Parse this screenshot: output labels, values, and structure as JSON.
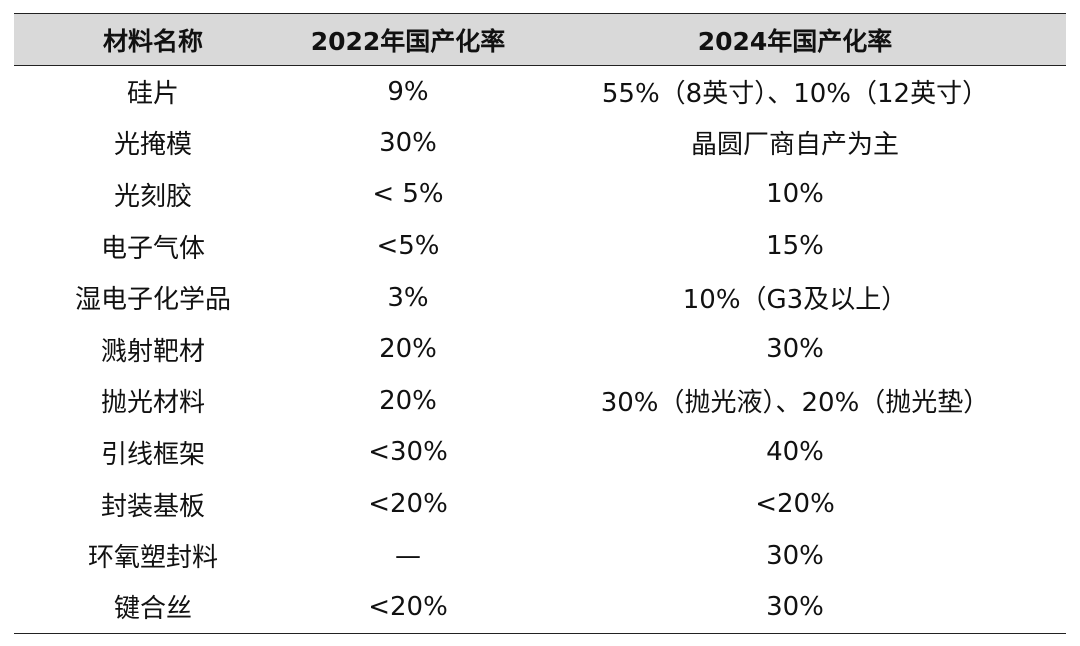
{
  "table": {
    "headers": [
      "材料名称",
      "2022年国产化率",
      "2024年国产化率"
    ],
    "rows": [
      [
        "硅片",
        "9%",
        "55%（8英寸）、10%（12英寸）"
      ],
      [
        "光掩模",
        "30%",
        "晶圆厂商自产为主"
      ],
      [
        "光刻胶",
        "< 5%",
        "10%"
      ],
      [
        "电子气体",
        "<5%",
        "15%"
      ],
      [
        "湿电子化学品",
        "3%",
        "10%（G3及以上）"
      ],
      [
        "溅射靶材",
        "20%",
        "30%"
      ],
      [
        "抛光材料",
        "20%",
        "30%（抛光液）、20%（抛光垫）"
      ],
      [
        "引线框架",
        "<30%",
        "40%"
      ],
      [
        "封装基板",
        "<20%",
        "<20%"
      ],
      [
        "环氧塑封料",
        "—",
        "30%"
      ],
      [
        "键合丝",
        "<20%",
        "30%"
      ]
    ]
  },
  "colors": {
    "header_bg": "#d9d9d9",
    "rule": "#222222"
  }
}
